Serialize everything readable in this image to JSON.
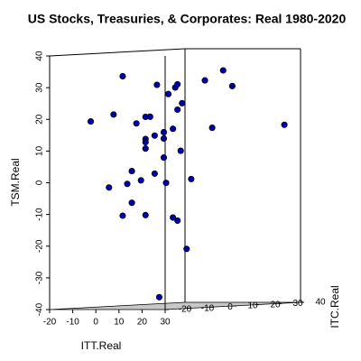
{
  "chart_data": {
    "type": "scatter3d",
    "title": "US Stocks, Treasuries, & Corporates: Real 1980-2020",
    "x_label": "ITT.Real",
    "y_label": "ITC.Real",
    "z_label": "TSM.Real",
    "color": "#0000aa",
    "xlim": [
      -20,
      30
    ],
    "ylim": [
      -20,
      40
    ],
    "zlim": [
      -40,
      40
    ],
    "xticks": [
      -20,
      -10,
      0,
      10,
      20,
      30
    ],
    "yticks": [
      -20,
      -10,
      0,
      10,
      20,
      30,
      40
    ],
    "zticks": [
      -40,
      -30,
      -20,
      -10,
      0,
      10,
      20,
      30,
      40
    ],
    "x": [
      -11,
      -6,
      -4,
      -7,
      -4,
      -3,
      -2,
      -2,
      -1,
      1,
      2,
      0,
      1,
      1,
      1,
      1,
      3,
      3,
      3.5,
      5,
      5,
      5,
      5.5,
      6,
      7,
      7,
      7.5,
      8,
      8,
      8.7,
      9,
      8,
      10,
      11,
      14,
      15.6,
      18,
      20,
      23,
      4
    ],
    "y": [
      -11,
      -6,
      -4,
      -7,
      -4,
      -3,
      -2,
      -2,
      -1,
      1,
      2,
      0,
      1,
      1,
      1,
      1,
      3,
      3,
      3.5,
      5,
      5,
      5,
      5.5,
      6,
      7,
      7,
      7.5,
      8,
      8,
      8.7,
      9,
      8,
      10,
      11,
      14,
      15.6,
      18,
      20,
      40,
      4
    ],
    "z": [
      19,
      21,
      33,
      -2,
      -11,
      -1,
      -7,
      3,
      18,
      20,
      20,
      0,
      13,
      12,
      10,
      -11,
      2,
      14,
      30,
      15,
      7,
      13,
      -1,
      27,
      -12,
      16,
      29,
      30,
      22,
      9,
      24,
      -13,
      -22,
      0,
      31,
      16,
      34,
      29,
      16,
      -37
    ]
  }
}
